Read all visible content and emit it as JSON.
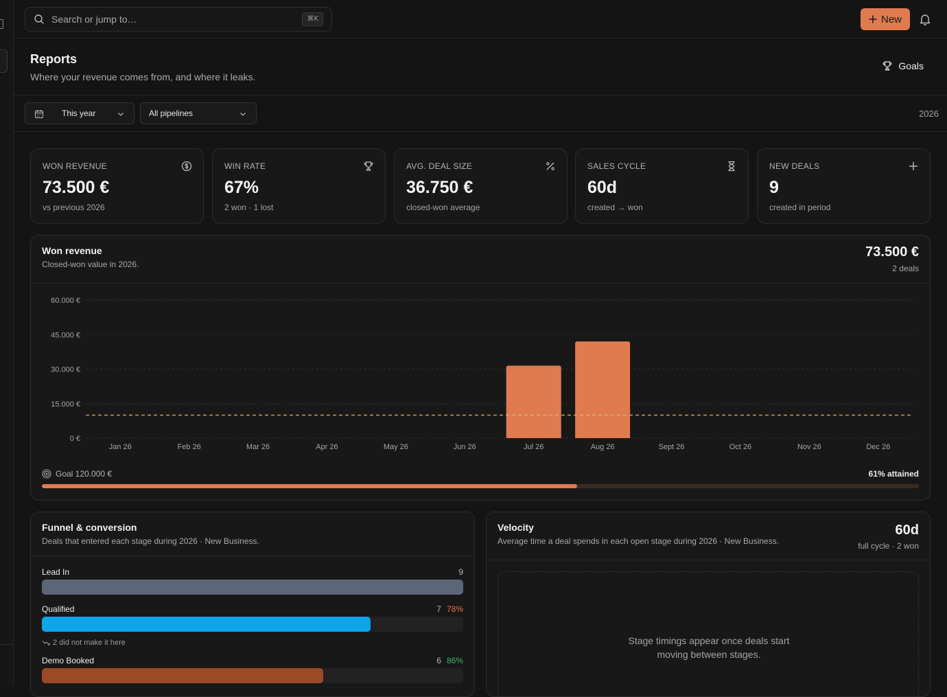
{
  "search": {
    "placeholder": "Search or jump to…",
    "shortcut": "⌘K"
  },
  "topbar": {
    "new_label": "New"
  },
  "header": {
    "title": "Reports",
    "subtitle": "Where your revenue comes from, and where it leaks.",
    "goals_label": "Goals"
  },
  "filters": {
    "period": "This year",
    "pipeline": "All pipelines",
    "year": "2026"
  },
  "kpis": [
    {
      "label": "WON REVENUE",
      "value": "73.500 €",
      "sub": "vs previous 2026",
      "icon": "dollar-circle-icon"
    },
    {
      "label": "WIN RATE",
      "value": "67%",
      "sub": "2 won · 1 lost",
      "icon": "trophy-icon"
    },
    {
      "label": "AVG. DEAL SIZE",
      "value": "36.750 €",
      "sub": "closed-won average",
      "icon": "percent-icon"
    },
    {
      "label": "SALES CYCLE",
      "value": "60d",
      "sub": "created → won",
      "icon": "hourglass-icon"
    },
    {
      "label": "NEW DEALS",
      "value": "9",
      "sub": "created in period",
      "icon": "plus-icon"
    }
  ],
  "won_revenue": {
    "title": "Won revenue",
    "subtitle": "Closed-won value in 2026.",
    "total": "73.500 €",
    "deals": "2 deals",
    "goal_label": "Goal 120.000 €",
    "attained_label": "61% attained",
    "attained_fraction": 0.61
  },
  "chart_data": {
    "type": "bar",
    "categories": [
      "Jan 26",
      "Feb 26",
      "Mar 26",
      "Apr 26",
      "May 26",
      "Jun 26",
      "Jul 26",
      "Aug 26",
      "Sept 26",
      "Oct 26",
      "Nov 26",
      "Dec 26"
    ],
    "values": [
      0,
      0,
      0,
      0,
      0,
      0,
      31500,
      42000,
      0,
      0,
      0,
      0
    ],
    "ylim": [
      0,
      60000
    ],
    "yticks": [
      0,
      15000,
      30000,
      45000,
      60000
    ],
    "ytick_labels": [
      "0 €",
      "15.000 €",
      "30.000 €",
      "45.000 €",
      "60.000 €"
    ],
    "goal_line": 10000,
    "bar_color": "#e07b4f",
    "goal_line_color": "#d6b86a",
    "grid": true,
    "title": "",
    "xlabel": "",
    "ylabel": ""
  },
  "funnel": {
    "title": "Funnel & conversion",
    "subtitle": "Deals that entered each stage during 2026 · New Business.",
    "stages": [
      {
        "name": "Lead In",
        "count": "9",
        "pct": "",
        "fraction": 1.0,
        "color": "#5b6678"
      },
      {
        "name": "Qualified",
        "count": "7",
        "pct": "78%",
        "pct_color": "#e8704f",
        "fraction": 0.78,
        "color": "#0ea5e9"
      },
      {
        "name": "Demo Booked",
        "count": "6",
        "pct": "86%",
        "pct_color": "#3fb56a",
        "fraction": 0.667,
        "color": "#9a4a26"
      }
    ],
    "drop_note": "2 did not make it here"
  },
  "velocity": {
    "title": "Velocity",
    "subtitle": "Average time a deal spends in each open stage during 2026 · New Business.",
    "value": "60d",
    "sub": "full cycle · 2 won",
    "empty_line1": "Stage timings appear once deals start",
    "empty_line2": "moving between stages."
  }
}
